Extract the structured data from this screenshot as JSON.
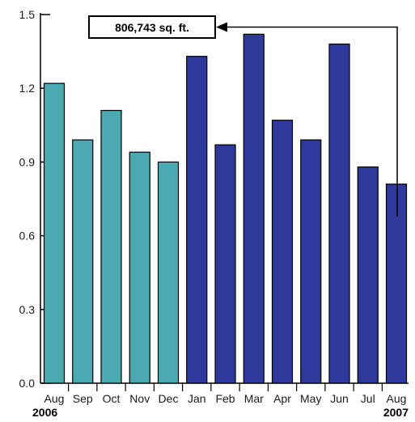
{
  "chart_data": {
    "type": "bar",
    "categories": [
      "Aug",
      "Sep",
      "Oct",
      "Nov",
      "Dec",
      "Jan",
      "Feb",
      "Mar",
      "Apr",
      "May",
      "Jun",
      "Jul",
      "Aug"
    ],
    "values": [
      1.22,
      0.99,
      1.11,
      0.94,
      0.9,
      1.33,
      0.97,
      1.42,
      1.07,
      0.99,
      1.38,
      0.88,
      0.81
    ],
    "year_labels": {
      "start": "2006",
      "end": "2007"
    },
    "yticks": [
      "0.0",
      "0.3",
      "0.6",
      "0.9",
      "1.2",
      "1.5"
    ],
    "ylim": [
      0,
      1.5
    ],
    "title": "",
    "xlabel": "",
    "ylabel": "",
    "grid": false,
    "colors": {
      "2006": "#4BA9B1",
      "2007": "#2E3A9B"
    },
    "callout": {
      "text": "806,743 sq. ft.",
      "target_index": 12
    }
  }
}
